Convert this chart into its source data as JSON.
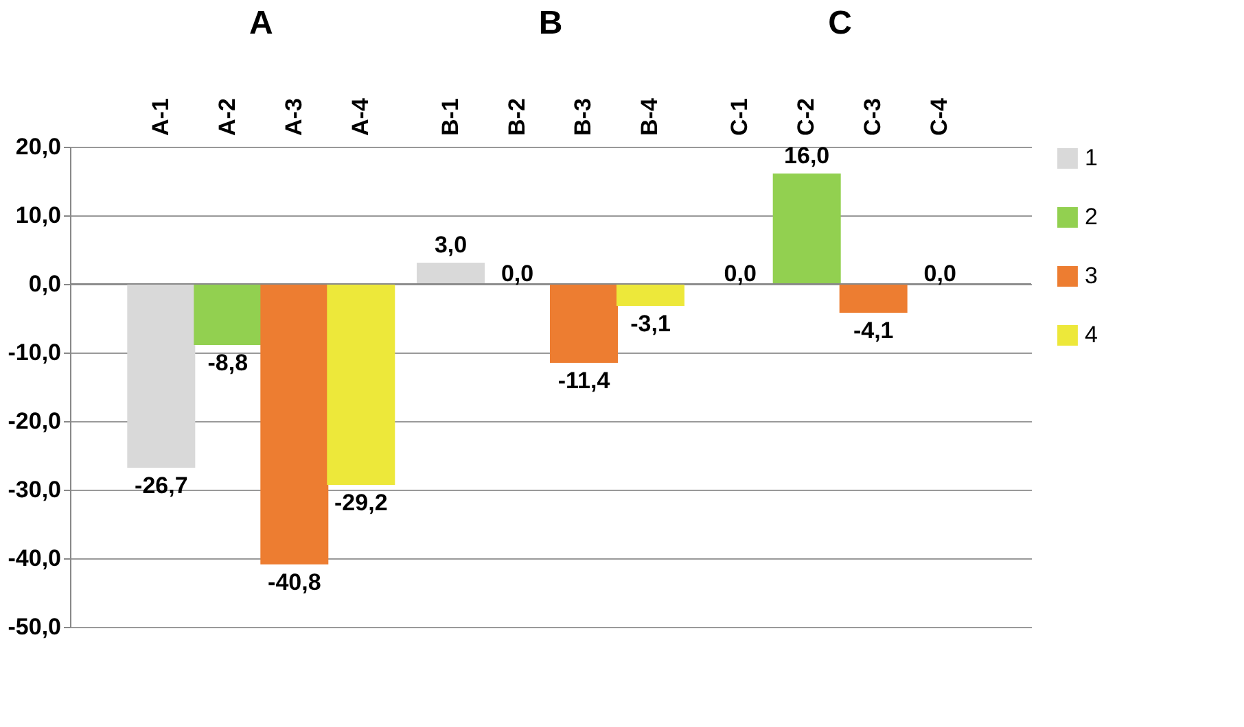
{
  "chart_data": {
    "type": "bar",
    "categories": [
      "A",
      "B",
      "C"
    ],
    "series": [
      {
        "name": "1",
        "color": "#d9d9d9",
        "values": [
          -26.7,
          3.0,
          0.0
        ],
        "value_labels": [
          "-26,7",
          "3,0",
          "0,0"
        ]
      },
      {
        "name": "2",
        "color": "#92d050",
        "values": [
          -8.8,
          0.0,
          16.0
        ],
        "value_labels": [
          "-8,8",
          "0,0",
          "16,0"
        ]
      },
      {
        "name": "3",
        "color": "#ed7d31",
        "values": [
          -40.8,
          -11.4,
          -4.1
        ],
        "value_labels": [
          "-40,8",
          "-11,4",
          "-4,1"
        ]
      },
      {
        "name": "4",
        "color": "#ede83a",
        "values": [
          -29.2,
          -3.1,
          0.0
        ],
        "value_labels": [
          "-29,2",
          "-3,1",
          "0,0"
        ]
      }
    ],
    "annotations": [
      "A-1",
      "A-2",
      "A-3",
      "A-4",
      "B-1",
      "B-2",
      "B-3",
      "B-4",
      "C-1",
      "C-2",
      "C-3",
      "C-4"
    ],
    "ylim": [
      -50,
      20
    ],
    "yticks": [
      {
        "value": -50,
        "label": "-50,0"
      },
      {
        "value": -40,
        "label": "-40,0"
      },
      {
        "value": -30,
        "label": "-30,0"
      },
      {
        "value": -20,
        "label": "-20,0"
      },
      {
        "value": -10,
        "label": "-10,0"
      },
      {
        "value": 0,
        "label": "0,0"
      },
      {
        "value": 10,
        "label": "10,0"
      },
      {
        "value": 20,
        "label": "20,0"
      }
    ],
    "grid": "y",
    "legend": "right"
  }
}
